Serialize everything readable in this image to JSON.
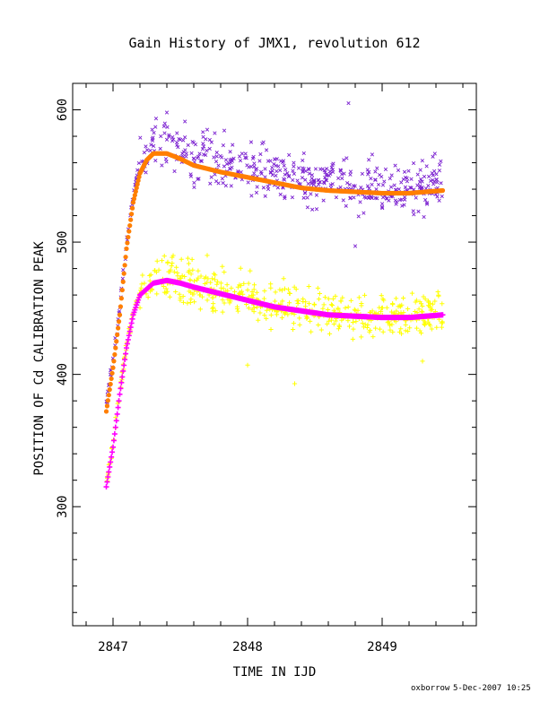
{
  "chart_data": {
    "type": "scatter",
    "title": "Gain History of JMX1, revolution 612",
    "xlabel": "TIME IN IJD",
    "ylabel": "POSITION OF Cd CALIBRATION PEAK",
    "xlim": [
      2846.7,
      2849.7
    ],
    "ylim": [
      210,
      620
    ],
    "x_ticks": [
      2847,
      2848,
      2849
    ],
    "x_tick_labels": [
      "2847",
      "2848",
      "2849"
    ],
    "y_ticks": [
      300,
      400,
      500,
      600
    ],
    "y_tick_labels": [
      "300",
      "400",
      "500",
      "600"
    ],
    "grid": false,
    "legend": "none",
    "colors": {
      "upper_points": "#7a1fd0",
      "upper_fit": "#ff7f00",
      "lower_points": "#ffff00",
      "lower_fit": "#ff00ff",
      "axes": "#000000"
    },
    "series": [
      {
        "marker": "x",
        "color": "#7a1fd0",
        "fit_color": "#ff7f00",
        "fit_curve": [
          [
            2846.95,
            372
          ],
          [
            2847.0,
            405
          ],
          [
            2847.05,
            445
          ],
          [
            2847.1,
            495
          ],
          [
            2847.15,
            530
          ],
          [
            2847.2,
            552
          ],
          [
            2847.25,
            562
          ],
          [
            2847.3,
            567
          ],
          [
            2847.4,
            567
          ],
          [
            2847.5,
            563
          ],
          [
            2847.6,
            558
          ],
          [
            2847.8,
            553
          ],
          [
            2848.0,
            549
          ],
          [
            2848.2,
            545
          ],
          [
            2848.4,
            541
          ],
          [
            2848.6,
            539
          ],
          [
            2848.8,
            538
          ],
          [
            2849.0,
            537
          ],
          [
            2849.2,
            537
          ],
          [
            2849.45,
            539
          ]
        ],
        "scatter_center": 550,
        "scatter_spread": 14,
        "outliers": [
          [
            2848.75,
            605
          ],
          [
            2848.8,
            497
          ],
          [
            2847.7,
            585
          ],
          [
            2847.4,
            598
          ]
        ]
      },
      {
        "marker": "+",
        "color": "#ffff00",
        "fit_color": "#ff00ff",
        "fit_curve": [
          [
            2846.95,
            315
          ],
          [
            2847.0,
            345
          ],
          [
            2847.05,
            385
          ],
          [
            2847.1,
            420
          ],
          [
            2847.15,
            445
          ],
          [
            2847.2,
            460
          ],
          [
            2847.3,
            469
          ],
          [
            2847.4,
            471
          ],
          [
            2847.5,
            469
          ],
          [
            2847.6,
            466
          ],
          [
            2847.8,
            461
          ],
          [
            2848.0,
            456
          ],
          [
            2848.2,
            451
          ],
          [
            2848.4,
            448
          ],
          [
            2848.6,
            445
          ],
          [
            2848.8,
            444
          ],
          [
            2849.0,
            443
          ],
          [
            2849.2,
            443
          ],
          [
            2849.45,
            445
          ]
        ],
        "scatter_center": 452,
        "scatter_spread": 12,
        "outliers": [
          [
            2848.0,
            407
          ],
          [
            2848.35,
            393
          ],
          [
            2849.3,
            410
          ],
          [
            2847.7,
            490
          ]
        ]
      }
    ]
  },
  "footer": {
    "author": "oxborrow",
    "timestamp": "5-Dec-2007 10:25"
  }
}
